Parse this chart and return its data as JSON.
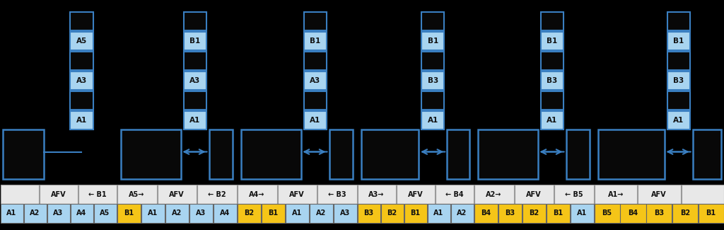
{
  "bg_color": "#000000",
  "box_border": "#3a7fc1",
  "cell_blue": "#a8d4f0",
  "cell_yellow": "#f5c518",
  "cell_white": "#e8e8e8",
  "cell_dark": "#080808",
  "sections": [
    {
      "stack_cells": [
        {
          "label": "A1",
          "filled": true
        },
        {
          "label": "",
          "filled": false
        },
        {
          "label": "A3",
          "filled": true
        },
        {
          "label": "",
          "filled": false
        },
        {
          "label": "A5",
          "filled": true
        },
        {
          "label": "",
          "filled": false
        }
      ],
      "has_right_box": false,
      "header": [
        "",
        "AFV",
        "← B1"
      ],
      "data_cells": [
        {
          "label": "A1",
          "color": "blue"
        },
        {
          "label": "A2",
          "color": "blue"
        },
        {
          "label": "A3",
          "color": "blue"
        },
        {
          "label": "A4",
          "color": "blue"
        },
        {
          "label": "A5",
          "color": "blue"
        }
      ]
    },
    {
      "stack_cells": [
        {
          "label": "A1",
          "filled": true
        },
        {
          "label": "",
          "filled": false
        },
        {
          "label": "A3",
          "filled": true
        },
        {
          "label": "",
          "filled": false
        },
        {
          "label": "B1",
          "filled": true
        },
        {
          "label": "",
          "filled": false
        }
      ],
      "has_right_box": true,
      "header": [
        "A5→",
        "AFV",
        "← B2"
      ],
      "data_cells": [
        {
          "label": "B1",
          "color": "yellow"
        },
        {
          "label": "A1",
          "color": "blue"
        },
        {
          "label": "A2",
          "color": "blue"
        },
        {
          "label": "A3",
          "color": "blue"
        },
        {
          "label": "A4",
          "color": "blue"
        }
      ]
    },
    {
      "stack_cells": [
        {
          "label": "A1",
          "filled": true
        },
        {
          "label": "",
          "filled": false
        },
        {
          "label": "A3",
          "filled": true
        },
        {
          "label": "",
          "filled": false
        },
        {
          "label": "B1",
          "filled": true
        },
        {
          "label": "",
          "filled": false
        }
      ],
      "has_right_box": true,
      "header": [
        "A4→",
        "AFV",
        "← B3"
      ],
      "data_cells": [
        {
          "label": "B2",
          "color": "yellow"
        },
        {
          "label": "B1",
          "color": "yellow"
        },
        {
          "label": "A1",
          "color": "blue"
        },
        {
          "label": "A2",
          "color": "blue"
        },
        {
          "label": "A3",
          "color": "blue"
        }
      ]
    },
    {
      "stack_cells": [
        {
          "label": "A1",
          "filled": true
        },
        {
          "label": "",
          "filled": false
        },
        {
          "label": "B3",
          "filled": true
        },
        {
          "label": "",
          "filled": false
        },
        {
          "label": "B1",
          "filled": true
        },
        {
          "label": "",
          "filled": false
        }
      ],
      "has_right_box": true,
      "header": [
        "A3→",
        "AFV",
        "← B4"
      ],
      "data_cells": [
        {
          "label": "B3",
          "color": "yellow"
        },
        {
          "label": "B2",
          "color": "yellow"
        },
        {
          "label": "B1",
          "color": "yellow"
        },
        {
          "label": "A1",
          "color": "blue"
        },
        {
          "label": "A2",
          "color": "blue"
        }
      ]
    },
    {
      "stack_cells": [
        {
          "label": "A1",
          "filled": true
        },
        {
          "label": "",
          "filled": false
        },
        {
          "label": "B3",
          "filled": true
        },
        {
          "label": "",
          "filled": false
        },
        {
          "label": "B1",
          "filled": true
        },
        {
          "label": "",
          "filled": false
        }
      ],
      "has_right_box": true,
      "header": [
        "A2→",
        "AFV",
        "← B5"
      ],
      "data_cells": [
        {
          "label": "B4",
          "color": "yellow"
        },
        {
          "label": "B3",
          "color": "yellow"
        },
        {
          "label": "B2",
          "color": "yellow"
        },
        {
          "label": "B1",
          "color": "yellow"
        },
        {
          "label": "A1",
          "color": "blue"
        }
      ]
    },
    {
      "stack_cells": [
        {
          "label": "A1",
          "filled": true
        },
        {
          "label": "",
          "filled": false
        },
        {
          "label": "B3",
          "filled": true
        },
        {
          "label": "",
          "filled": false
        },
        {
          "label": "B1",
          "filled": true
        },
        {
          "label": "",
          "filled": false
        }
      ],
      "has_right_box": true,
      "header": [
        "A1→",
        "AFV",
        ""
      ],
      "data_cells": [
        {
          "label": "B5",
          "color": "yellow"
        },
        {
          "label": "B4",
          "color": "yellow"
        },
        {
          "label": "B3",
          "color": "yellow"
        },
        {
          "label": "B2",
          "color": "yellow"
        },
        {
          "label": "B1",
          "color": "yellow"
        }
      ]
    }
  ]
}
